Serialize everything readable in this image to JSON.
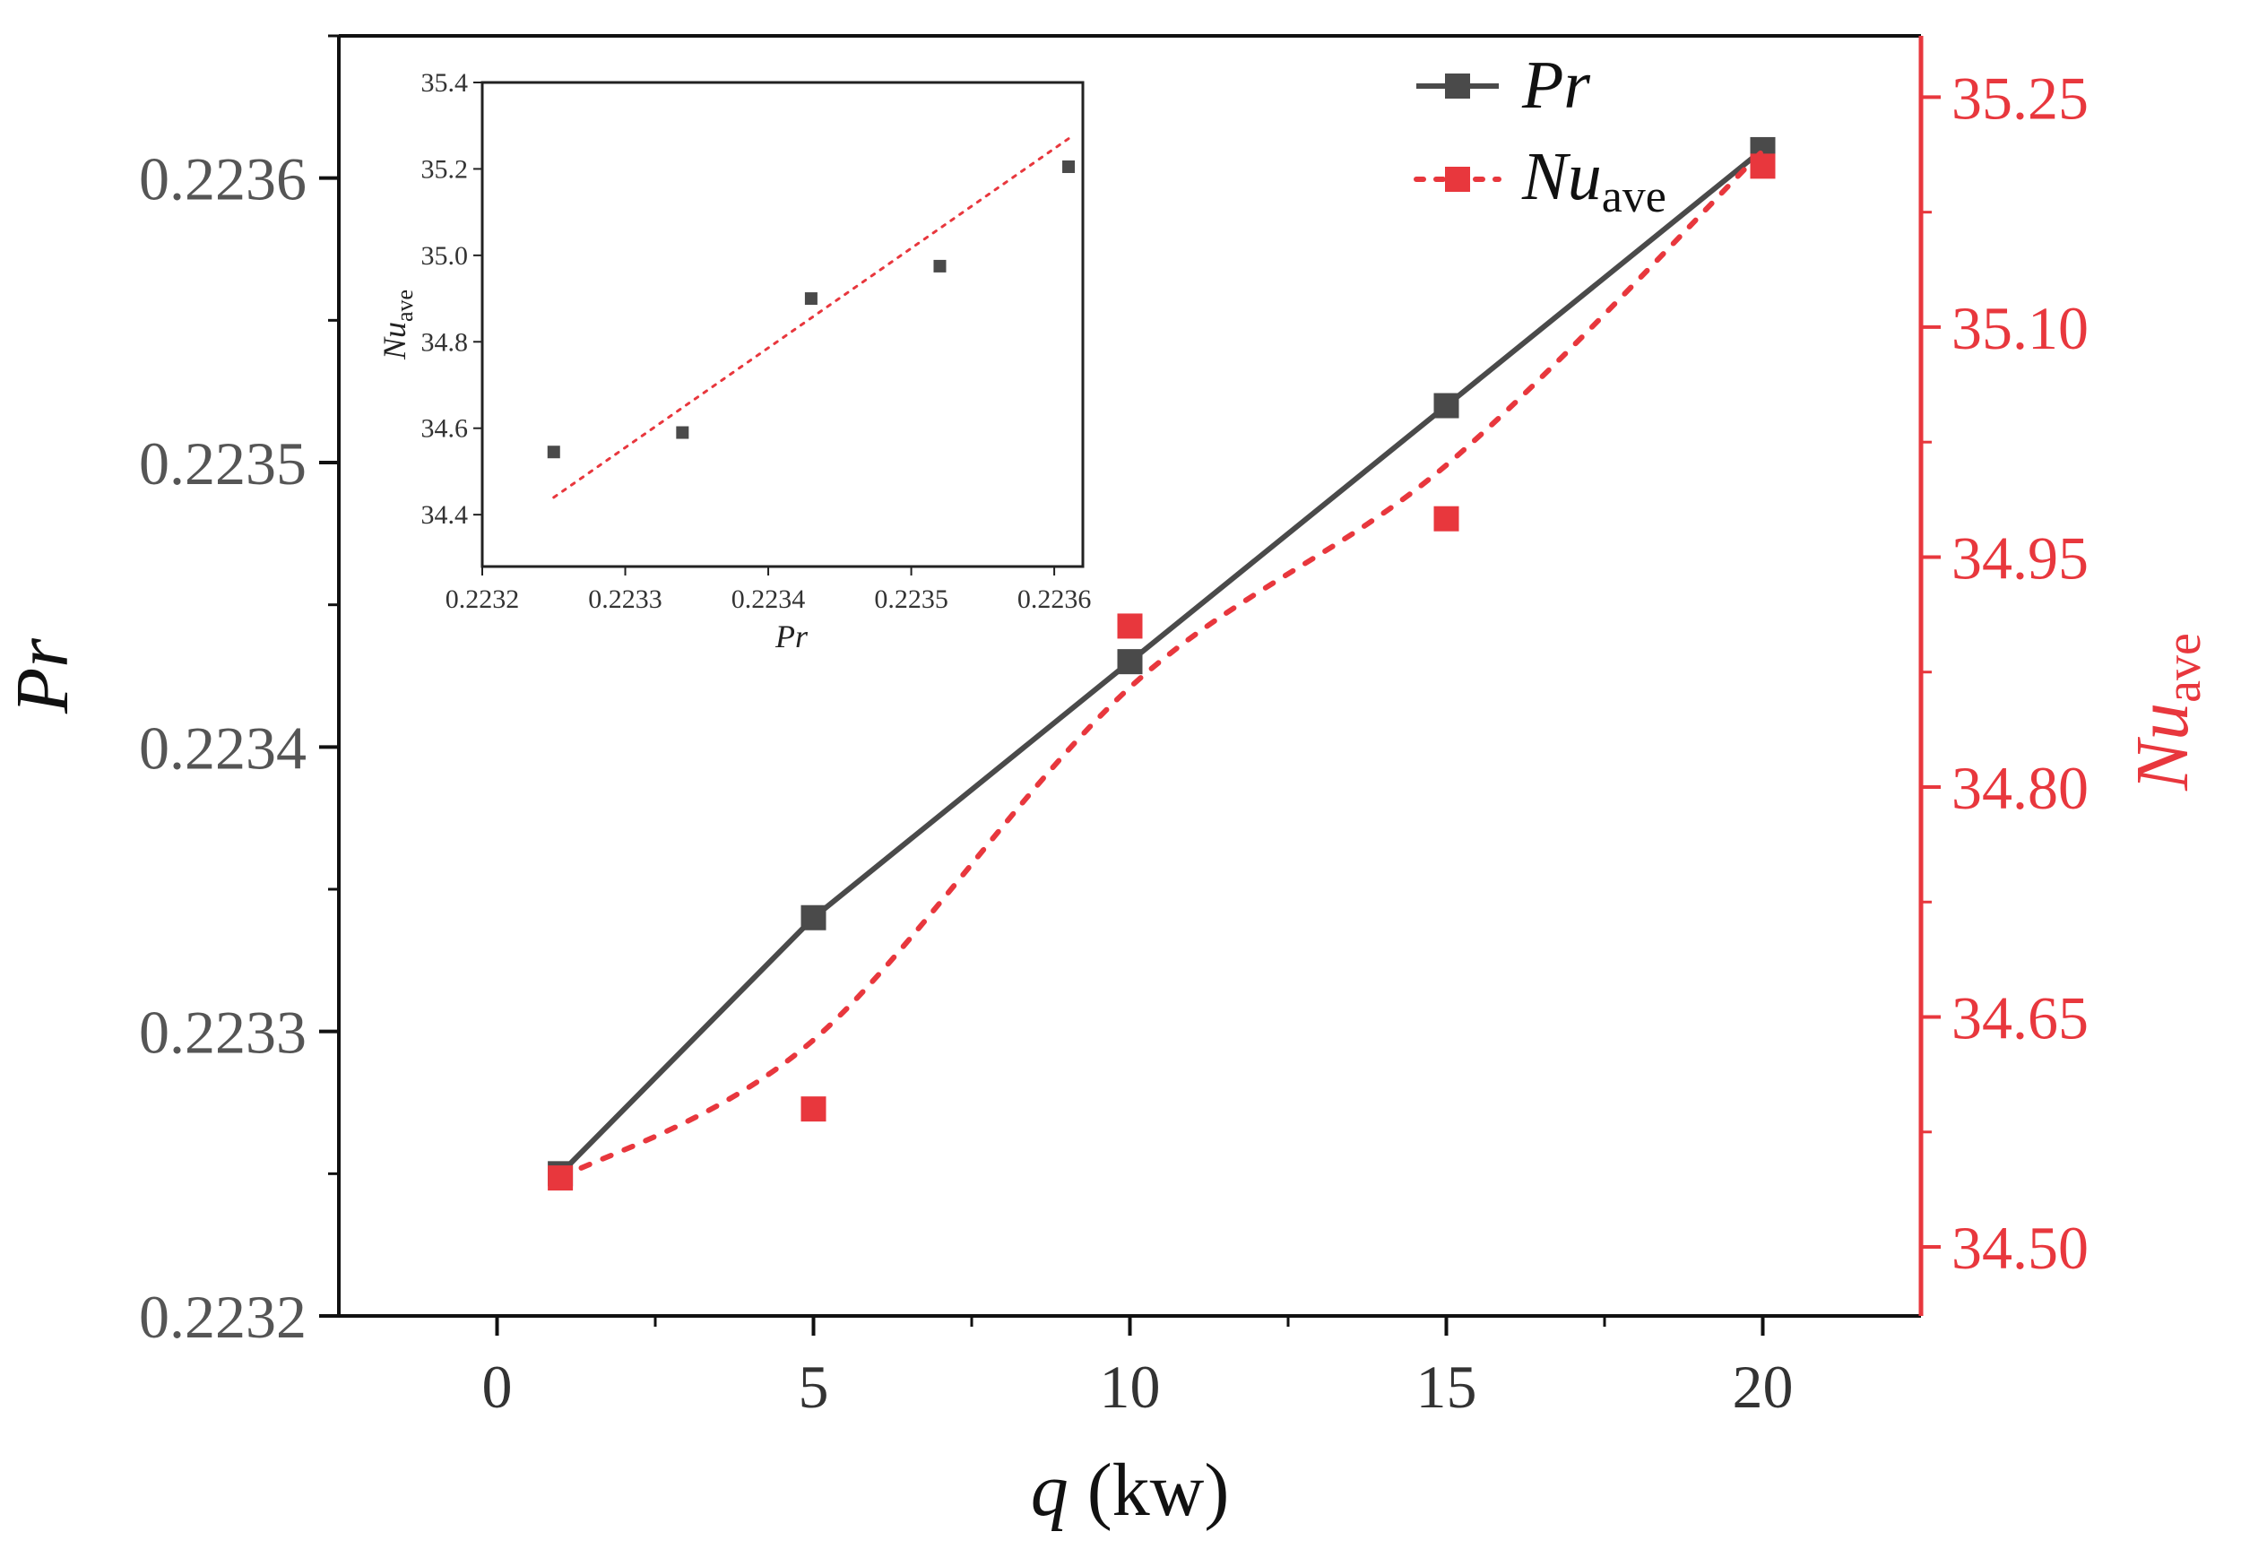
{
  "chart_data": [
    {
      "id": "main",
      "type": "line",
      "x_label_var": "q",
      "x_label_unit": "(kw)",
      "y_label": "Pr",
      "y2_label_base": "Nu",
      "y2_label_sub": "ave",
      "x_range": [
        -2.5,
        22.5
      ],
      "y_range": [
        0.2232,
        0.22365
      ],
      "y2_range": [
        34.455,
        35.29
      ],
      "x_ticks": [
        0,
        5,
        10,
        15,
        20
      ],
      "x_tick_labels": [
        "0",
        "5",
        "10",
        "15",
        "20"
      ],
      "y_ticks": [
        0.2232,
        0.2233,
        0.2234,
        0.2235,
        0.2236
      ],
      "y_tick_labels": [
        "0.2232",
        "0.2233",
        "0.2234",
        "0.2235",
        "0.2236"
      ],
      "y2_ticks": [
        34.5,
        34.65,
        34.8,
        34.95,
        35.1,
        35.25
      ],
      "y2_tick_labels": [
        "34.50",
        "34.65",
        "34.80",
        "34.95",
        "35.10",
        "35.25"
      ],
      "series": [
        {
          "name": "Pr",
          "axis": "left",
          "color": "#4a4a4a",
          "line": "solid",
          "x": [
            1,
            5,
            10,
            15,
            20
          ],
          "y": [
            0.22325,
            0.22334,
            0.22343,
            0.22352,
            0.22361
          ]
        },
        {
          "name": "Nu_ave",
          "axis": "right",
          "color": "#e8373d",
          "line": "dotted-fit",
          "x": [
            1,
            5,
            10,
            15,
            20
          ],
          "y": [
            34.545,
            34.59,
            34.905,
            34.975,
            35.205
          ],
          "fit_y": [
            34.545,
            34.635,
            34.865,
            35.01,
            35.215
          ]
        }
      ],
      "legend": {
        "position": "top-right",
        "entries": [
          {
            "base": "Pr",
            "sub": ""
          },
          {
            "base": "Nu",
            "sub": "ave"
          }
        ]
      }
    },
    {
      "id": "inset",
      "type": "scatter",
      "position": "top-left",
      "x_label": "Pr",
      "y_label_base": "Nu",
      "y_label_sub": "ave",
      "x_range": [
        0.2232,
        0.22362
      ],
      "y_range": [
        34.28,
        35.4
      ],
      "x_ticks": [
        0.2232,
        0.2233,
        0.2234,
        0.2235,
        0.2236
      ],
      "x_tick_labels": [
        "0.2232",
        "0.2233",
        "0.2234",
        "0.2235",
        "0.2236"
      ],
      "y_ticks": [
        34.4,
        34.6,
        34.8,
        35.0,
        35.2,
        35.4
      ],
      "y_tick_labels": [
        "34.4",
        "34.6",
        "34.8",
        "35.0",
        "35.2",
        "35.4"
      ],
      "points": {
        "x": [
          0.22325,
          0.22334,
          0.22343,
          0.22352,
          0.22361
        ],
        "y": [
          34.545,
          34.59,
          34.9,
          34.975,
          35.205
        ]
      },
      "fit": {
        "x": [
          0.22325,
          0.22361
        ],
        "y": [
          34.44,
          35.27
        ]
      },
      "point_color": "#4a4a4a",
      "fit_color": "#e8373d"
    }
  ]
}
